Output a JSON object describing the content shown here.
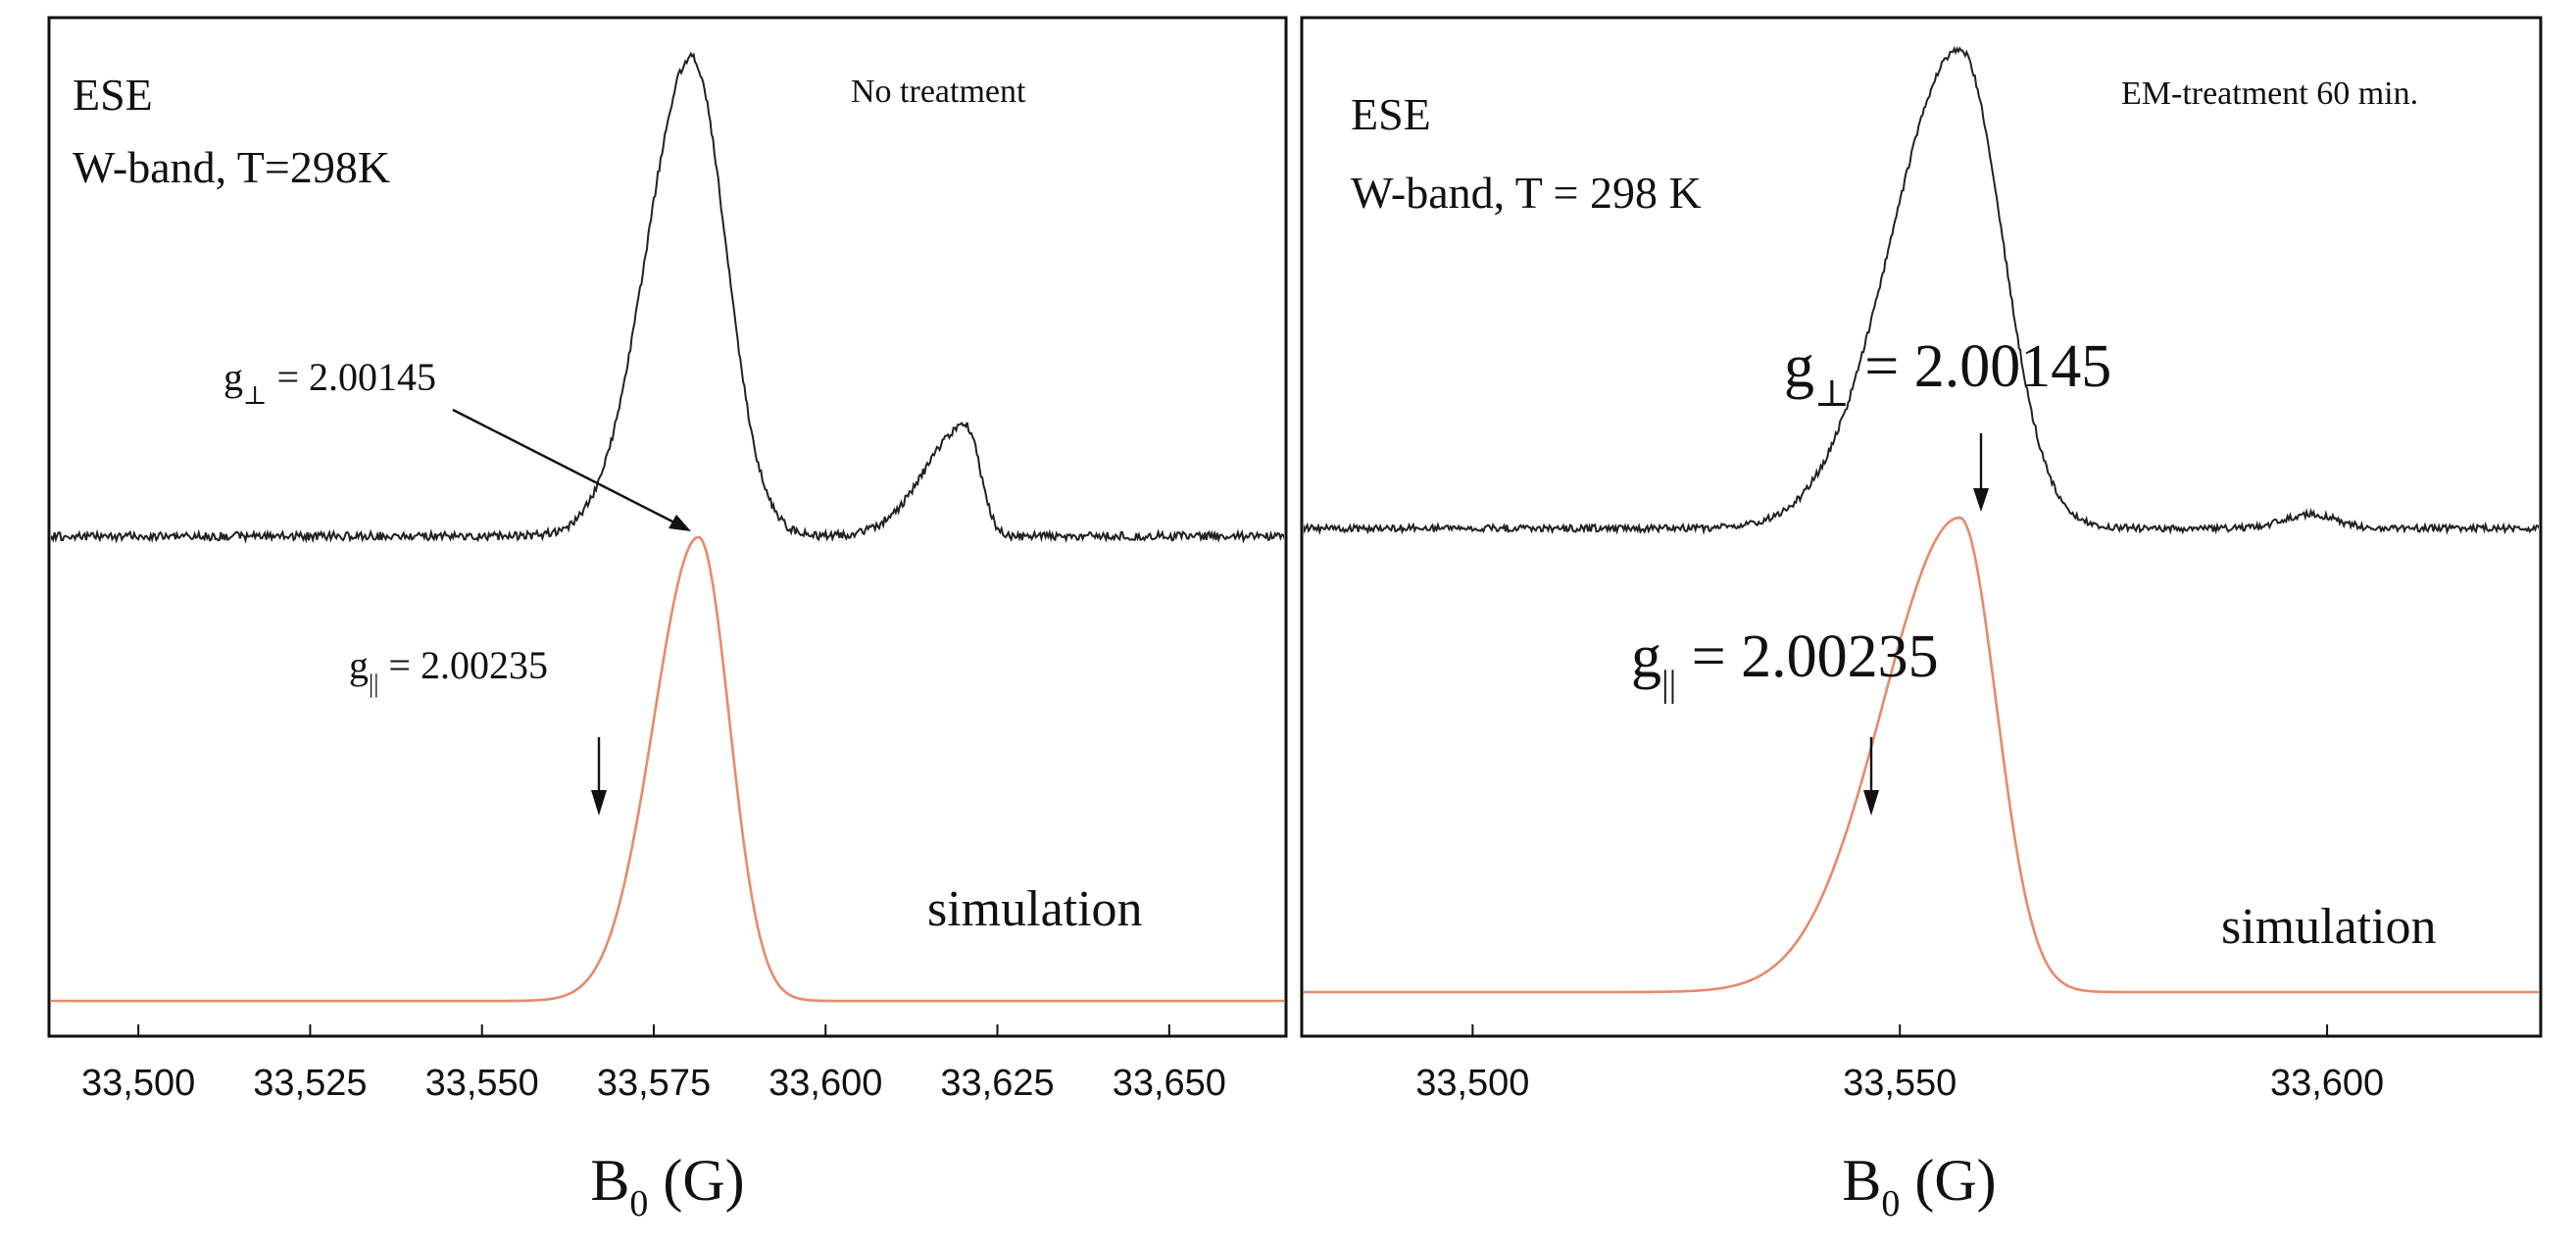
{
  "chart_data": [
    {
      "type": "line",
      "panel": "left",
      "title": "",
      "annotation_condition": "No treatment",
      "annotation_lines": [
        "ESE",
        "W-band, T=298K"
      ],
      "xlabel": "B",
      "xlabel_sub": "0",
      "xlabel_unit": " (G)",
      "ylabel": "",
      "xlim": [
        33487,
        33667
      ],
      "xticks": [
        33500,
        33525,
        33550,
        33575,
        33600,
        33625,
        33650
      ],
      "xtick_labels": [
        "33,500",
        "33,525",
        "33,550",
        "33,575",
        "33,600",
        "33,625",
        "33,650"
      ],
      "grid": false,
      "series": [
        {
          "style": "black-noisy",
          "baseline": 0,
          "components": [
            {
              "center": 33580.5,
              "amplitude": 1.0,
              "sigma_low": 6.5,
              "sigma_high": 5.0
            },
            {
              "center": 33620.5,
              "amplitude": 0.23,
              "sigma_low": 6.0,
              "sigma_high": 2.0
            }
          ]
        },
        {
          "name": "simulation",
          "style": "orange-smooth",
          "baseline": 0,
          "components": [
            {
              "center": 33581.5,
              "amplitude": 1.0,
              "sigma_low": 6.5,
              "sigma_high": 4.5
            }
          ]
        }
      ],
      "annotations": [
        {
          "g": "g",
          "sub": "⊥",
          "value": " = 2.00145",
          "points_to_x": 33581.5
        },
        {
          "g": "g",
          "sub": "||",
          "value": " = 2.00235",
          "points_to_x": 33568
        }
      ]
    },
    {
      "type": "line",
      "panel": "right",
      "title": "",
      "annotation_condition": "EM-treatment 60 min.",
      "annotation_lines": [
        "ESE",
        "W-band, T = 298 K"
      ],
      "xlabel": "B",
      "xlabel_sub": "0",
      "xlabel_unit": " (G)",
      "ylabel": "",
      "xlim": [
        33480,
        33625
      ],
      "xticks": [
        33500,
        33550,
        33600
      ],
      "xtick_labels": [
        "33,500",
        "33,550",
        "33,600"
      ],
      "grid": false,
      "series": [
        {
          "style": "black-noisy",
          "baseline": 0,
          "components": [
            {
              "center": 33557,
              "amplitude": 1.0,
              "sigma_low": 8.0,
              "sigma_high": 5.0
            },
            {
              "center": 33598,
              "amplitude": 0.03,
              "sigma_low": 3.0,
              "sigma_high": 3.0
            }
          ]
        },
        {
          "name": "simulation",
          "style": "orange-smooth",
          "baseline": 0,
          "components": [
            {
              "center": 33557,
              "amplitude": 1.0,
              "sigma_low": 9.0,
              "sigma_high": 4.3
            }
          ]
        }
      ],
      "annotations": [
        {
          "g": "g",
          "sub": "⊥",
          "value": " = 2.00145",
          "points_to_x": 33557
        },
        {
          "g": "g",
          "sub": "||",
          "value": " = 2.00235",
          "points_to_x": 33543
        }
      ]
    }
  ]
}
